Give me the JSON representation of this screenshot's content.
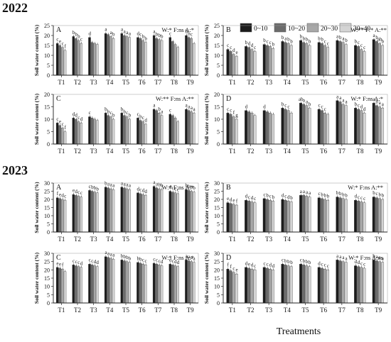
{
  "years": [
    "2022",
    "2023"
  ],
  "xaxis_title": "Treatments",
  "yaxis_label": "Soil water content (%)",
  "legend": {
    "entries": [
      "0~10",
      "10~20",
      "20~30",
      "30~40"
    ],
    "colors": [
      "#1c1c1c",
      "#6b6b6b",
      "#a8a8a8",
      "#d4d4d4"
    ]
  },
  "chart_data": [
    {
      "type": "bar",
      "panel": "A",
      "year": "2022",
      "stats": "W:* F:ns A:*",
      "ylim": [
        0,
        25
      ],
      "yticks": [
        0,
        5,
        10,
        15,
        20,
        25
      ],
      "categories": [
        "T1",
        "T2",
        "T3",
        "T4",
        "T5",
        "T6",
        "T7",
        "T8",
        "T9"
      ],
      "letters": [
        [
          "c",
          "e",
          "c",
          "f"
        ],
        [
          "b",
          "b",
          "b",
          "c"
        ],
        [
          "d",
          "",
          "",
          ""
        ],
        [
          "a",
          "",
          "a",
          "b"
        ],
        [
          "a",
          "a",
          "a",
          "a"
        ],
        [
          "d",
          "c",
          "b",
          "b"
        ],
        [
          "a",
          "b",
          "b",
          "b"
        ],
        [
          "c",
          "",
          "",
          ""
        ],
        [
          "b",
          "b",
          "c",
          ""
        ]
      ],
      "series": [
        {
          "name": "0~10",
          "values": [
            16,
            19.5,
            19,
            21,
            21,
            19,
            20,
            19,
            20
          ]
        },
        {
          "name": "10~20",
          "values": [
            15,
            18.5,
            16.5,
            20.5,
            20,
            18.5,
            18.5,
            17,
            19
          ]
        },
        {
          "name": "20~30",
          "values": [
            14,
            17.5,
            16,
            19.5,
            19.5,
            17.5,
            18,
            15.5,
            18.5
          ]
        },
        {
          "name": "30~40",
          "values": [
            12.5,
            16,
            15.5,
            18.5,
            19,
            16.5,
            17.5,
            14,
            16
          ]
        }
      ]
    },
    {
      "type": "bar",
      "panel": "B",
      "year": "2022",
      "stats": "W:** F:* A:**",
      "ylim": [
        0,
        25
      ],
      "yticks": [
        0,
        5,
        10,
        15,
        20,
        25
      ],
      "categories": [
        "T1",
        "T2",
        "T3",
        "T4",
        "T5",
        "T6",
        "T7",
        "T8",
        "T9"
      ],
      "letters": [
        [
          "c",
          "c",
          "d",
          "e"
        ],
        [
          "b",
          "d",
          "d",
          "c"
        ],
        [
          "b",
          "c",
          "c",
          "b"
        ],
        [
          "b",
          "a",
          "b",
          "b"
        ],
        [
          "b",
          "b",
          "b",
          "b"
        ],
        [
          "b",
          "b",
          "c",
          "c"
        ],
        [
          "a",
          "b",
          "a",
          "b"
        ],
        [
          "b",
          "c",
          "c",
          "c"
        ],
        [
          "a",
          "b",
          "ab",
          "b"
        ]
      ],
      "series": [
        {
          "name": "0~10",
          "values": [
            13,
            14.5,
            15.5,
            17,
            17.5,
            16.5,
            17.5,
            15,
            18
          ]
        },
        {
          "name": "10~20",
          "values": [
            12,
            14,
            15,
            16.5,
            16.5,
            16,
            17,
            14.5,
            17
          ]
        },
        {
          "name": "20~30",
          "values": [
            10.5,
            13,
            14.5,
            16,
            16,
            15,
            16.5,
            13,
            16
          ]
        },
        {
          "name": "30~40",
          "values": [
            9.5,
            12,
            13.5,
            15,
            15,
            14,
            15.5,
            12,
            15
          ]
        }
      ]
    },
    {
      "type": "bar",
      "panel": "C",
      "year": "2022",
      "stats": "W:** F:ns A:**",
      "ylim": [
        0,
        20
      ],
      "yticks": [
        0,
        5,
        10,
        15,
        20
      ],
      "categories": [
        "T1",
        "T2",
        "T3",
        "T4",
        "T5",
        "T6",
        "T7",
        "T8",
        "T9"
      ],
      "letters": [
        [
          "c",
          "e",
          "c",
          "f"
        ],
        [
          "d",
          "d",
          "c",
          "d"
        ],
        [
          "c",
          "",
          "",
          ""
        ],
        [
          "b",
          "b",
          "c",
          "b"
        ],
        [
          "b",
          "b",
          "c",
          "b"
        ],
        [
          "c",
          "b",
          "c",
          "d"
        ],
        [
          "a",
          "",
          "b",
          "a"
        ],
        [
          "c",
          "",
          "",
          ""
        ],
        [
          "a",
          "a",
          "a",
          "a"
        ]
      ],
      "series": [
        {
          "name": "0~10",
          "values": [
            8.5,
            10.5,
            11,
            12.5,
            12.5,
            10.5,
            14,
            12,
            14
          ]
        },
        {
          "name": "10~20",
          "values": [
            7.5,
            10,
            10.5,
            11.5,
            11.5,
            9.5,
            13.5,
            11.5,
            13.5
          ]
        },
        {
          "name": "20~30",
          "values": [
            6.5,
            9,
            10,
            11,
            11,
            9,
            12.5,
            10.5,
            13
          ]
        },
        {
          "name": "30~40",
          "values": [
            5,
            8.5,
            9.5,
            10,
            10,
            8,
            11.5,
            9,
            12.5
          ]
        }
      ]
    },
    {
      "type": "bar",
      "panel": "D",
      "year": "2022",
      "stats": "W:* F:ns A:*",
      "ylim": [
        0,
        20
      ],
      "yticks": [
        0,
        5,
        10,
        15,
        20
      ],
      "categories": [
        "T1",
        "T2",
        "T3",
        "T4",
        "T5",
        "T6",
        "T7",
        "T8",
        "T9"
      ],
      "letters": [
        [
          "c",
          "c",
          "f",
          "g"
        ],
        [
          "d",
          "",
          "",
          ""
        ],
        [
          "d",
          "",
          "",
          ""
        ],
        [
          "b",
          "c",
          "c",
          ""
        ],
        [
          "ab",
          "a",
          "a",
          "b"
        ],
        [
          "c",
          "c",
          "c",
          ""
        ],
        [
          "a",
          "a",
          "a",
          "a"
        ],
        [
          "b",
          "c",
          "d",
          "d"
        ],
        [
          "a",
          "b",
          "a",
          "a"
        ]
      ],
      "series": [
        {
          "name": "0~10",
          "values": [
            12.5,
            13.5,
            13.5,
            14.5,
            16.5,
            14,
            17.5,
            14.5,
            16.5
          ]
        },
        {
          "name": "10~20",
          "values": [
            12,
            13,
            13,
            14,
            16,
            13.5,
            17,
            14,
            15.5
          ]
        },
        {
          "name": "20~30",
          "values": [
            11,
            12.5,
            12.5,
            13.5,
            15.5,
            12.5,
            16,
            13.5,
            15
          ]
        },
        {
          "name": "30~40",
          "values": [
            10,
            11.5,
            12,
            12.5,
            14.5,
            12,
            15.5,
            12.5,
            14.5
          ]
        }
      ]
    },
    {
      "type": "bar",
      "panel": "A",
      "year": "2023",
      "stats": "W:* F:ns A:*",
      "ylim": [
        0,
        30
      ],
      "yticks": [
        0,
        5,
        10,
        15,
        20,
        25,
        30
      ],
      "categories": [
        "T1",
        "T2",
        "T3",
        "T4",
        "T5",
        "T6",
        "T7",
        "T8",
        "T9"
      ],
      "letters": [
        [
          "f",
          "e",
          "d",
          "c"
        ],
        [
          "e",
          "d",
          "c",
          "c"
        ],
        [
          "c",
          "b",
          "b",
          "b"
        ],
        [
          "b",
          "a",
          "a",
          "a"
        ],
        [
          "a",
          "a",
          "a",
          "a"
        ],
        [
          "d",
          "c",
          "d",
          "d"
        ],
        [
          "a",
          "a",
          "b",
          "b"
        ],
        [
          "d",
          "c",
          "c",
          "c"
        ],
        [
          "b",
          "b",
          "b",
          "b"
        ]
      ],
      "series": [
        {
          "name": "0~10",
          "values": [
            21,
            23,
            25.5,
            27.5,
            27.5,
            24,
            28,
            25,
            26
          ]
        },
        {
          "name": "10~20",
          "values": [
            20.5,
            22.5,
            25,
            27,
            27,
            23.5,
            27,
            24.5,
            25.5
          ]
        },
        {
          "name": "20~30",
          "values": [
            20,
            22,
            24.5,
            26.5,
            26.5,
            23,
            26.5,
            24,
            25
          ]
        },
        {
          "name": "30~40",
          "values": [
            19.5,
            21.5,
            24,
            26,
            26,
            22.5,
            26,
            23.5,
            24.5
          ]
        }
      ]
    },
    {
      "type": "bar",
      "panel": "B",
      "year": "2023",
      "stats": "W:* F:ns A:**",
      "ylim": [
        0,
        30
      ],
      "yticks": [
        0,
        5,
        10,
        15,
        20,
        25,
        30
      ],
      "categories": [
        "T1",
        "T2",
        "T3",
        "T4",
        "T5",
        "T6",
        "T7",
        "T8",
        "T9"
      ],
      "letters": [
        [
          "e",
          "d",
          "e",
          "f"
        ],
        [
          "d",
          "c",
          "d",
          "c"
        ],
        [
          "c",
          "b",
          "c",
          "b"
        ],
        [
          "d",
          "c",
          "d",
          "b"
        ],
        [
          "a",
          "a",
          "a",
          "a"
        ],
        [
          "c",
          "b",
          "b",
          "b"
        ],
        [
          "b",
          "b",
          "b",
          "b"
        ],
        [
          "d",
          "c",
          "c",
          "c"
        ],
        [
          "b",
          "c",
          "b",
          "b"
        ]
      ],
      "series": [
        {
          "name": "0~10",
          "values": [
            18,
            19.5,
            20.5,
            20,
            22.5,
            21,
            21.5,
            19.5,
            21.5
          ]
        },
        {
          "name": "10~20",
          "values": [
            17.5,
            19,
            20,
            19.5,
            22.5,
            20.5,
            21,
            19,
            21
          ]
        },
        {
          "name": "20~30",
          "values": [
            17,
            18.5,
            19.5,
            19,
            22,
            20,
            20.5,
            18.5,
            20.5
          ]
        },
        {
          "name": "30~40",
          "values": [
            16.5,
            18,
            19,
            18.5,
            21.5,
            19.5,
            20,
            18,
            20
          ]
        }
      ]
    },
    {
      "type": "bar",
      "panel": "C",
      "year": "2023",
      "stats": "W:* F:ns A:*",
      "ylim": [
        0,
        30
      ],
      "yticks": [
        0,
        5,
        10,
        15,
        20,
        25,
        30
      ],
      "categories": [
        "T1",
        "T2",
        "T3",
        "T4",
        "T5",
        "T6",
        "T7",
        "T8",
        "T9"
      ],
      "letters": [
        [
          "e",
          "e",
          "f",
          ""
        ],
        [
          "c",
          "c",
          "c",
          "d"
        ],
        [
          "c",
          "c",
          "d",
          "d"
        ],
        [
          "a",
          "a",
          "a",
          "a"
        ],
        [
          "b",
          "b",
          "b",
          "b"
        ],
        [
          "b",
          "b",
          "c",
          "c"
        ],
        [
          "c",
          "c",
          "c",
          "d"
        ],
        [
          "d",
          "c",
          "d",
          "d"
        ],
        [
          "a",
          "a",
          "a",
          "a"
        ]
      ],
      "series": [
        {
          "name": "0~10",
          "values": [
            21.5,
            23,
            23.5,
            28,
            26,
            24.5,
            24,
            23.5,
            26
          ]
        },
        {
          "name": "10~20",
          "values": [
            21,
            22.5,
            23,
            27.5,
            25.5,
            24,
            23.5,
            23,
            25.5
          ]
        },
        {
          "name": "20~30",
          "values": [
            20.5,
            22,
            22.5,
            27,
            25,
            23.5,
            23,
            22.5,
            25
          ]
        },
        {
          "name": "30~40",
          "values": [
            19,
            21.5,
            22,
            26.5,
            24.5,
            23,
            22.5,
            22,
            24.5
          ]
        }
      ]
    },
    {
      "type": "bar",
      "panel": "D",
      "year": "2023",
      "stats": "W:* F:ns A:ns",
      "ylim": [
        0,
        30
      ],
      "yticks": [
        0,
        5,
        10,
        15,
        20,
        25,
        30
      ],
      "categories": [
        "T1",
        "T2",
        "T3",
        "T4",
        "T5",
        "T6",
        "T7",
        "T8",
        "T9"
      ],
      "letters": [
        [
          "f",
          "f",
          "c",
          "e"
        ],
        [
          "d",
          "e",
          "d",
          "c"
        ],
        [
          "c",
          "c",
          "d",
          "d"
        ],
        [
          "c",
          "b",
          "b",
          "b"
        ],
        [
          "c",
          "b",
          "b",
          "b"
        ],
        [
          "d",
          "c",
          "c",
          "c"
        ],
        [
          "a",
          "a",
          "a",
          "a"
        ],
        [
          "d",
          "d",
          "c",
          "c"
        ],
        [
          "b",
          "a",
          "a",
          "a"
        ]
      ],
      "series": [
        {
          "name": "0~10",
          "values": [
            20.5,
            21.5,
            21.5,
            23.5,
            23.5,
            21.5,
            26,
            22.5,
            26
          ]
        },
        {
          "name": "10~20",
          "values": [
            19.5,
            21,
            21,
            23,
            23,
            21,
            25.5,
            22,
            25.5
          ]
        },
        {
          "name": "20~30",
          "values": [
            18.5,
            20.5,
            20.5,
            22.5,
            22.5,
            20.5,
            25,
            21.5,
            25
          ]
        },
        {
          "name": "30~40",
          "values": [
            17.5,
            20,
            20,
            22,
            22,
            20,
            24.5,
            21,
            24.5
          ]
        }
      ]
    }
  ]
}
